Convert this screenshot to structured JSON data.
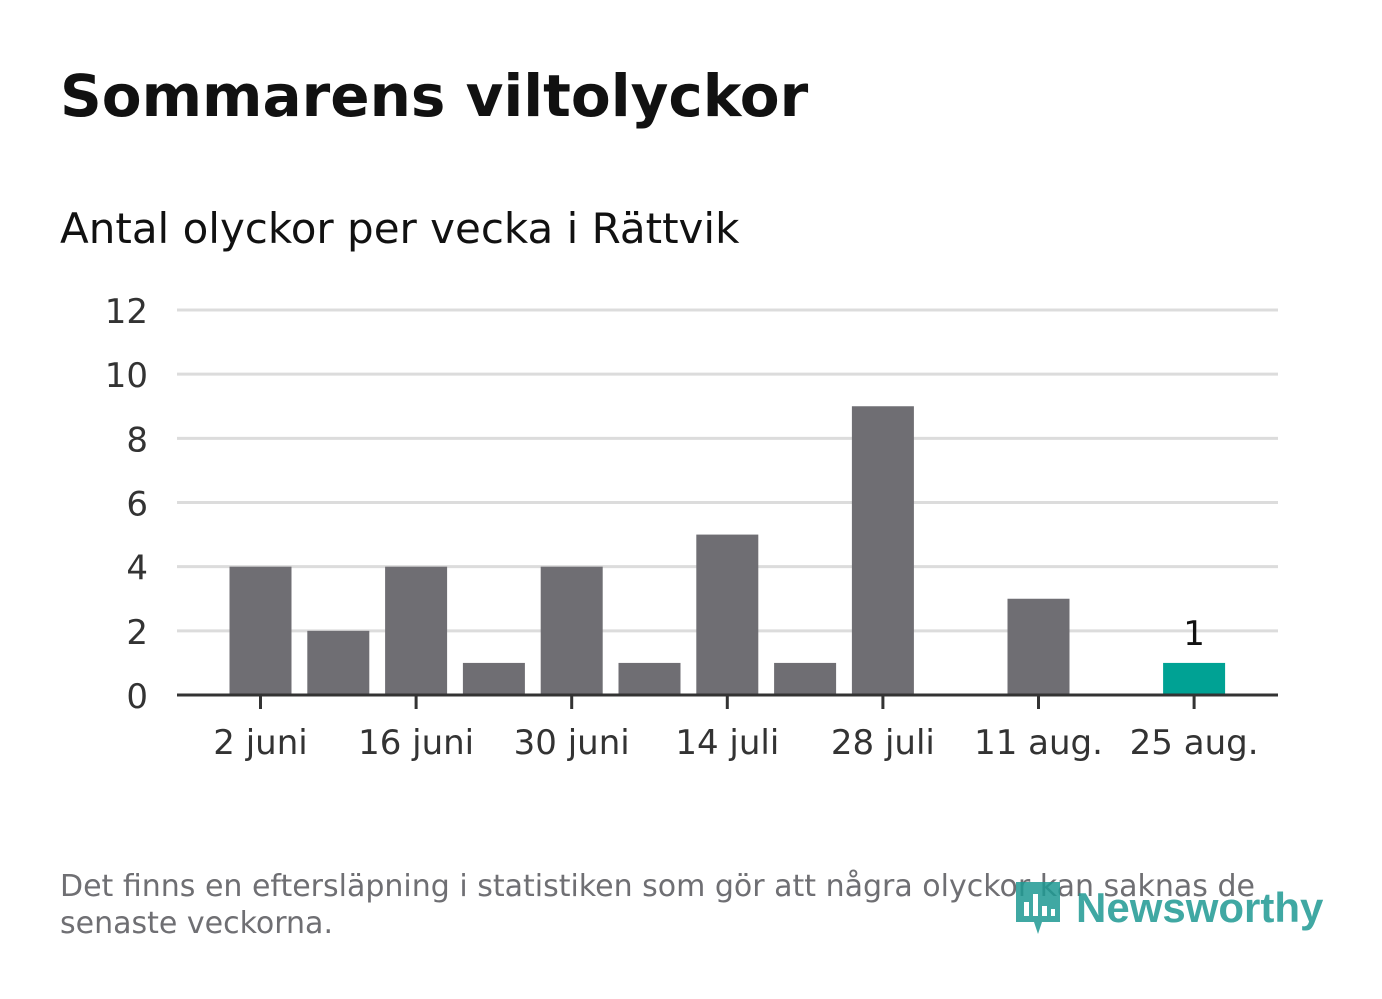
{
  "header": {
    "title": "Sommarens viltolyckor",
    "subtitle": "Antal olyckor per vecka i Rättvik"
  },
  "chart_data": {
    "type": "bar",
    "categories": [
      "2 juni",
      "",
      "16 juni",
      "",
      "30 juni",
      "",
      "14 juli",
      "",
      "28 juli",
      "",
      "11 aug.",
      "",
      "25 aug."
    ],
    "tick_labels": [
      "2 juni",
      "16 juni",
      "30 juni",
      "14 juli",
      "28 juli",
      "11 aug.",
      "25 aug."
    ],
    "values": [
      4,
      2,
      4,
      1,
      4,
      1,
      5,
      1,
      9,
      0,
      3,
      0,
      1
    ],
    "ylim": [
      0,
      12
    ],
    "yticks": [
      0,
      2,
      4,
      6,
      8,
      10,
      12
    ],
    "grid": true,
    "highlight_index": 12,
    "data_labels": [
      {
        "index": 12,
        "text": "1"
      }
    ],
    "colors": {
      "bar": "#6f6e73",
      "highlight": "#00a294",
      "grid": "#dcdcdc",
      "axis": "#333333",
      "text": "#333333"
    },
    "xlabel": "",
    "ylabel": ""
  },
  "footer": {
    "note": "Det finns en eftersläpning i statistiken som gör att några olyckor kan saknas de senaste veckorna.",
    "brand": "Newsworthy",
    "brand_icon": "newsworthy-logo-icon",
    "brand_color": "#1f9a93"
  }
}
